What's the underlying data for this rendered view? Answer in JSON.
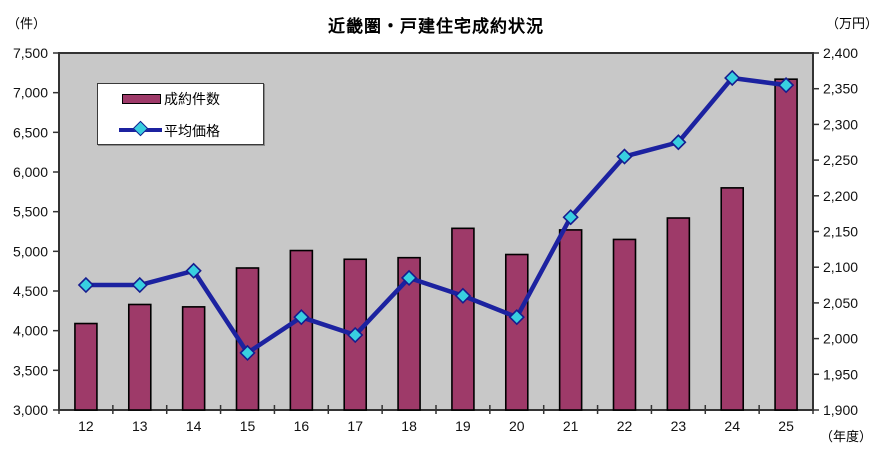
{
  "chart_data": {
    "type": "combo-bar-line",
    "title": "近畿圏・戸建住宅成約状況",
    "categories": [
      "12",
      "13",
      "14",
      "15",
      "16",
      "17",
      "18",
      "19",
      "20",
      "21",
      "22",
      "23",
      "24",
      "25"
    ],
    "series": [
      {
        "name": "成約件数",
        "type": "bar",
        "axis": "left",
        "values": [
          4090,
          4330,
          4300,
          4790,
          5010,
          4900,
          4920,
          5290,
          4960,
          5270,
          5150,
          5420,
          5800,
          7170
        ],
        "color": "#9E3A69",
        "border_color": "#000000"
      },
      {
        "name": "平均価格",
        "type": "line",
        "axis": "right",
        "values": [
          2075,
          2075,
          2095,
          1980,
          2030,
          2005,
          2085,
          2060,
          2030,
          2170,
          2255,
          2275,
          2365,
          2355
        ],
        "color": "#1C22A0",
        "marker_shape": "diamond",
        "marker_fill": "#38CFE0",
        "marker_border": "#161C8F"
      }
    ],
    "left_axis": {
      "unit": "（件）",
      "min": 3000,
      "max": 7500,
      "step": 500,
      "tick_labels": [
        "3,000",
        "3,500",
        "4,000",
        "4,500",
        "5,000",
        "5,500",
        "6,000",
        "6,500",
        "7,000",
        "7,500"
      ]
    },
    "right_axis": {
      "unit": "（万円）",
      "min": 1900,
      "max": 2400,
      "step": 50,
      "tick_labels": [
        "1,900",
        "1,950",
        "2,000",
        "2,050",
        "2,100",
        "2,150",
        "2,200",
        "2,250",
        "2,300",
        "2,350",
        "2,400"
      ]
    },
    "x_axis": {
      "unit": "（年度）"
    },
    "legend": {
      "position": "inside-top-left",
      "items": [
        "成約件数",
        "平均価格"
      ]
    },
    "grid": false,
    "plot_background": "#C8C8C8",
    "axis_color": "#333333"
  }
}
